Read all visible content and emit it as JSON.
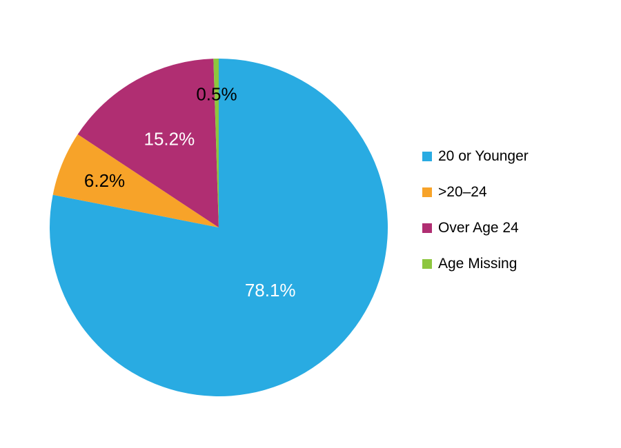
{
  "chart_data": {
    "type": "pie",
    "title": "",
    "unit": "%",
    "direction": "clockwise",
    "start_angle_deg": 0,
    "legend_position": "right",
    "background_color": "#FFFFFF",
    "slices": [
      {
        "label": "20 or Younger",
        "value": 78.1,
        "display": "78.1%",
        "color": "#29ABE2",
        "label_color": "#FFFFFF",
        "label_r": 0.48
      },
      {
        "label": ">20–24",
        "value": 6.2,
        "display": "6.2%",
        "color": "#F7A329",
        "label_color": "#000000",
        "label_r": 0.73
      },
      {
        "label": "Over Age 24",
        "value": 15.2,
        "display": "15.2%",
        "color": "#B02E72",
        "label_color": "#FFFFFF",
        "label_r": 0.6
      },
      {
        "label": "Age Missing",
        "value": 0.5,
        "display": "0.5%",
        "color": "#8DC63F",
        "label_color": "#000000",
        "label_r": 0.79
      }
    ]
  }
}
